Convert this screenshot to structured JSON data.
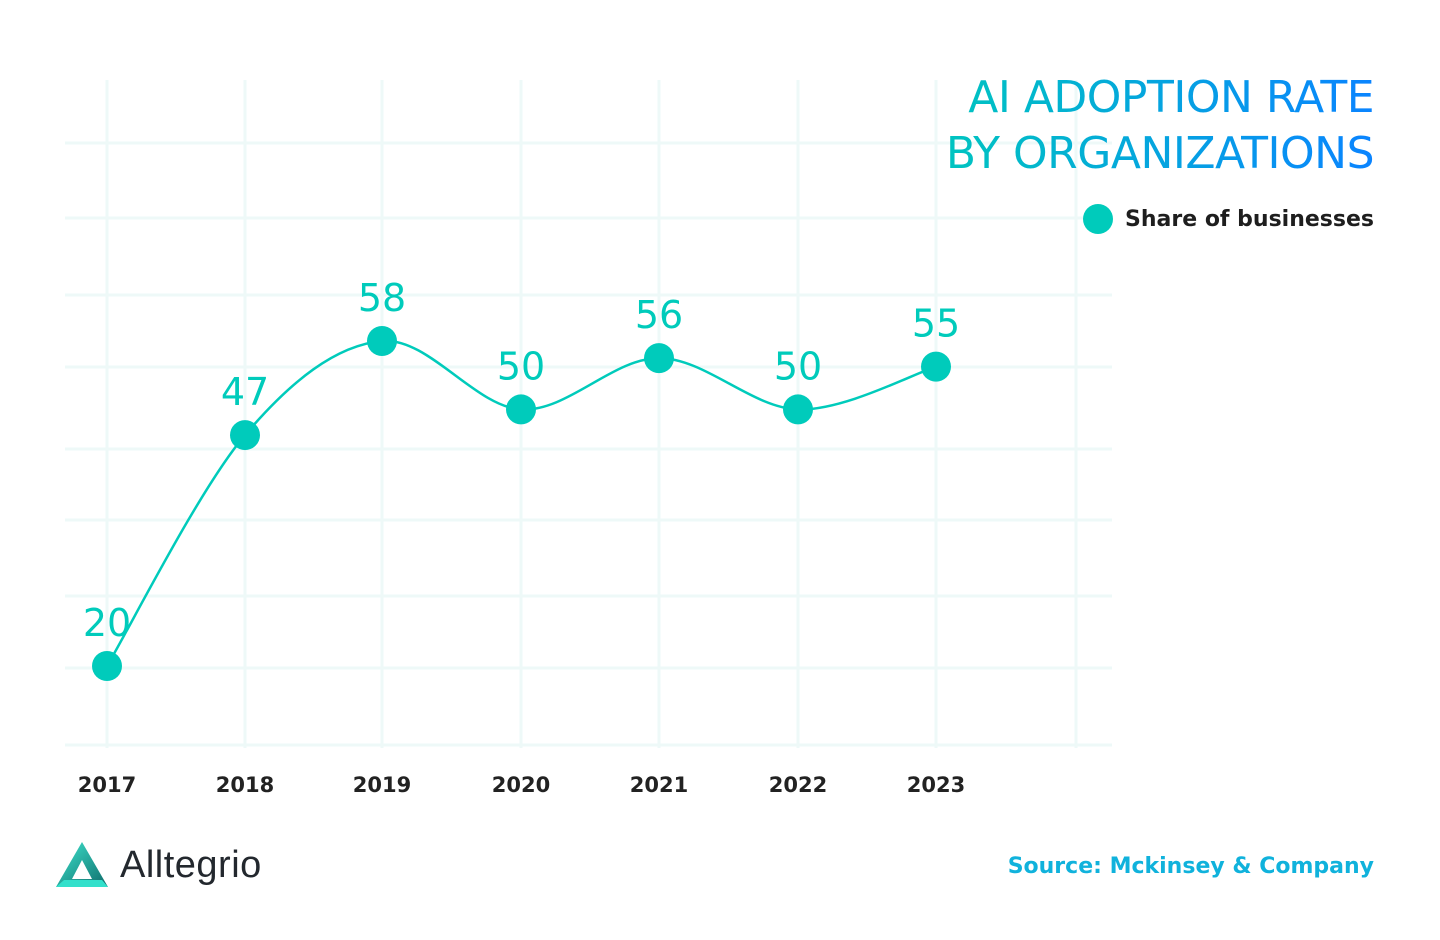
{
  "chart_data": {
    "type": "line",
    "title": [
      "AI ADOPTION RATE",
      "BY ORGANIZATIONS"
    ],
    "categories": [
      "2017",
      "2018",
      "2019",
      "2020",
      "2021",
      "2022",
      "2023"
    ],
    "series": [
      {
        "name": "Share of businesses",
        "values": [
          20,
          47,
          58,
          50,
          56,
          50,
          55
        ],
        "color": "#00cbbb"
      }
    ],
    "data_labels": true,
    "smooth": true,
    "grid": true,
    "legend_position": "top-right",
    "ylim": [
      10,
      70
    ]
  },
  "legend": {
    "label": "Share of businesses"
  },
  "title_line1": "AI ADOPTION RATE",
  "title_line2": "BY ORGANIZATIONS",
  "source": "Source: Mckinsey & Company",
  "brand": {
    "name": "Alltegrio",
    "logo": "triangle-logo"
  },
  "colors": {
    "accent": "#00cbbb",
    "title_start": "#00c4c0",
    "title_end": "#0a84ff",
    "grid": "#eef9f8",
    "source": "#10b2dc"
  }
}
